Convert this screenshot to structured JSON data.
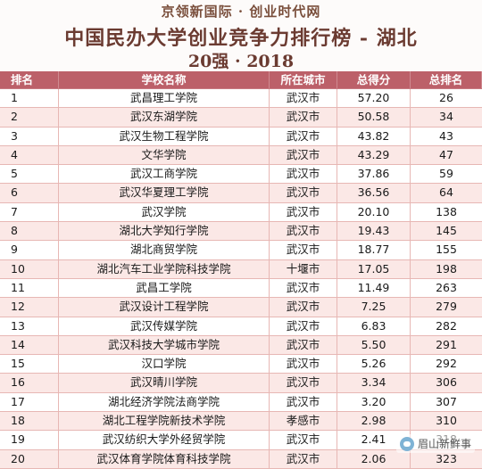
{
  "header": {
    "subtitle": "京领新国际 · 创业时代网",
    "title": "中国民办大学创业竞争力排行榜 - 湖北",
    "year_line": "20强 · 2018"
  },
  "table": {
    "columns": [
      "排名",
      "学校名称",
      "所在城市",
      "总得分",
      "总排名"
    ],
    "rows": [
      {
        "rank": "1",
        "school": "武昌理工学院",
        "city": "武汉市",
        "score": "57.20",
        "overall": "26"
      },
      {
        "rank": "2",
        "school": "武汉东湖学院",
        "city": "武汉市",
        "score": "50.58",
        "overall": "34"
      },
      {
        "rank": "3",
        "school": "武汉生物工程学院",
        "city": "武汉市",
        "score": "43.82",
        "overall": "43"
      },
      {
        "rank": "4",
        "school": "文华学院",
        "city": "武汉市",
        "score": "43.29",
        "overall": "47"
      },
      {
        "rank": "5",
        "school": "武汉工商学院",
        "city": "武汉市",
        "score": "37.86",
        "overall": "59"
      },
      {
        "rank": "6",
        "school": "武汉华夏理工学院",
        "city": "武汉市",
        "score": "36.56",
        "overall": "64"
      },
      {
        "rank": "7",
        "school": "武汉学院",
        "city": "武汉市",
        "score": "20.10",
        "overall": "138"
      },
      {
        "rank": "8",
        "school": "湖北大学知行学院",
        "city": "武汉市",
        "score": "19.43",
        "overall": "145"
      },
      {
        "rank": "9",
        "school": "湖北商贸学院",
        "city": "武汉市",
        "score": "18.77",
        "overall": "155"
      },
      {
        "rank": "10",
        "school": "湖北汽车工业学院科技学院",
        "city": "十堰市",
        "score": "17.05",
        "overall": "198"
      },
      {
        "rank": "11",
        "school": "武昌工学院",
        "city": "武汉市",
        "score": "11.49",
        "overall": "263"
      },
      {
        "rank": "12",
        "school": "武汉设计工程学院",
        "city": "武汉市",
        "score": "7.25",
        "overall": "279"
      },
      {
        "rank": "13",
        "school": "武汉传媒学院",
        "city": "武汉市",
        "score": "6.83",
        "overall": "282"
      },
      {
        "rank": "14",
        "school": "武汉科技大学城市学院",
        "city": "武汉市",
        "score": "5.50",
        "overall": "291"
      },
      {
        "rank": "15",
        "school": "汉口学院",
        "city": "武汉市",
        "score": "5.26",
        "overall": "292"
      },
      {
        "rank": "16",
        "school": "武汉晴川学院",
        "city": "武汉市",
        "score": "3.34",
        "overall": "306"
      },
      {
        "rank": "17",
        "school": "湖北经济学院法商学院",
        "city": "武汉市",
        "score": "3.20",
        "overall": "307"
      },
      {
        "rank": "18",
        "school": "湖北工程学院新技术学院",
        "city": "孝感市",
        "score": "2.98",
        "overall": "310"
      },
      {
        "rank": "19",
        "school": "武汉纺织大学外经贸学院",
        "city": "武汉市",
        "score": "2.41",
        "overall": "318"
      },
      {
        "rank": "20",
        "school": "武汉体育学院体育科技学院",
        "city": "武汉市",
        "score": "2.06",
        "overall": "323"
      }
    ]
  },
  "watermark": {
    "icon": "wechat-icon",
    "text": "眉山新鲜事"
  },
  "colors": {
    "header_band": "#bc6069",
    "stripe": "#fbe8e6",
    "title": "#6b3b31"
  }
}
